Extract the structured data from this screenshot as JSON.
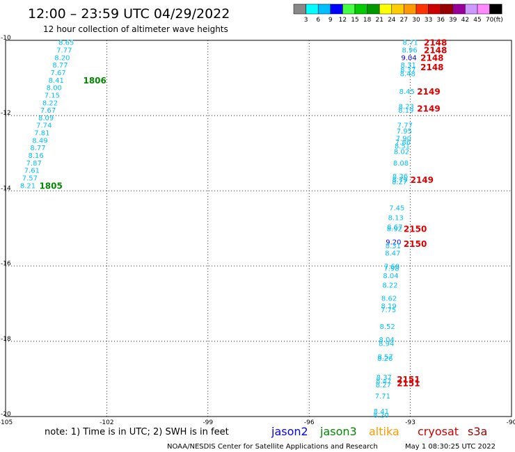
{
  "title": "12:00 – 23:59 UTC 04/29/2022",
  "subtitle": "12 hour collection of altimeter wave heights",
  "note": "note:  1) Time is in UTC; 2) SWH is in feet",
  "footer_left": "NOAA/NESDIS Center for Satellite Applications and Research",
  "footer_right": "May  1 08:30:25 UTC 2022",
  "colorbar": {
    "unit": "(ft)",
    "labels": [
      "3",
      "6",
      "9",
      "12",
      "15",
      "18",
      "21",
      "24",
      "27",
      "30",
      "33",
      "36",
      "39",
      "42",
      "45",
      "70"
    ],
    "colors": [
      "#888888",
      "#00ffff",
      "#00bfff",
      "#0000ff",
      "#44ff44",
      "#00cc00",
      "#009900",
      "#ffff00",
      "#ffcc00",
      "#ff9900",
      "#ff3300",
      "#cc0000",
      "#990000",
      "#990099",
      "#cc99ff",
      "#ff88ff",
      "#000000"
    ]
  },
  "satellites": [
    {
      "name": "jason2",
      "color": "#0000ff"
    },
    {
      "name": "jason3",
      "color": "#008800"
    },
    {
      "name": "altika",
      "color": "#ff9900"
    },
    {
      "name": "cryosat",
      "color": "#cc0000"
    },
    {
      "name": "s3a",
      "color": "#990000"
    }
  ],
  "chart_data": {
    "type": "scatter",
    "title": "12:00 – 23:59 UTC 04/29/2022",
    "subtitle": "12 hour collection of altimeter wave heights",
    "xlim": [
      -105,
      -90
    ],
    "ylim": [
      -20,
      -10
    ],
    "x_ticks": [
      "-105",
      "-102",
      "-99",
      "-96",
      "-93",
      "-90"
    ],
    "y_ticks": [
      "-10",
      "-12",
      "-14",
      "-16",
      "-18",
      "-20"
    ],
    "grid": true,
    "series": [
      {
        "name": "jason3",
        "track_color": "#00bfff",
        "points": [
          {
            "x": -103.2,
            "y": -10.05,
            "label": "8.65"
          },
          {
            "x": -103.26,
            "y": -10.25,
            "label": "7.77"
          },
          {
            "x": -103.32,
            "y": -10.45,
            "label": "8.20"
          },
          {
            "x": -103.38,
            "y": -10.65,
            "label": "8.77"
          },
          {
            "x": -103.44,
            "y": -10.85,
            "label": "7.67"
          },
          {
            "x": -103.5,
            "y": -11.05,
            "label": "8.41"
          },
          {
            "x": -103.56,
            "y": -11.25,
            "label": "8.00"
          },
          {
            "x": -103.62,
            "y": -11.45,
            "label": "7.15"
          },
          {
            "x": -103.68,
            "y": -11.65,
            "label": "8.22"
          },
          {
            "x": -103.74,
            "y": -11.85,
            "label": "7.67"
          },
          {
            "x": -103.8,
            "y": -12.05,
            "label": "8.09"
          },
          {
            "x": -103.86,
            "y": -12.25,
            "label": "7.74"
          },
          {
            "x": -103.92,
            "y": -12.45,
            "label": "7.81"
          },
          {
            "x": -103.98,
            "y": -12.65,
            "label": "8.49"
          },
          {
            "x": -104.04,
            "y": -12.85,
            "label": "8.77"
          },
          {
            "x": -104.1,
            "y": -13.05,
            "label": "8.16"
          },
          {
            "x": -104.16,
            "y": -13.25,
            "label": "7.87"
          },
          {
            "x": -104.22,
            "y": -13.45,
            "label": "7.61"
          },
          {
            "x": -104.28,
            "y": -13.65,
            "label": "7.57"
          },
          {
            "x": -104.34,
            "y": -13.85,
            "label": "8.21"
          }
        ],
        "pass_labels": [
          {
            "x": -102.7,
            "y": -11.05,
            "label": "1806",
            "color": "#008800"
          },
          {
            "x": -104.0,
            "y": -13.85,
            "label": "1805",
            "color": "#008800"
          }
        ]
      },
      {
        "name": "cryosat",
        "track_color": "#00bfff",
        "points": [
          {
            "x": -93.0,
            "y": -10.05,
            "label": "8.71"
          },
          {
            "x": -93.02,
            "y": -10.25,
            "label": "8.96"
          },
          {
            "x": -93.04,
            "y": -10.45,
            "label": "9.04",
            "color": "#0000ff"
          },
          {
            "x": -93.06,
            "y": -10.65,
            "label": "8.31"
          },
          {
            "x": -93.07,
            "y": -10.78,
            "label": "8.37"
          },
          {
            "x": -93.08,
            "y": -10.88,
            "label": "8.48"
          },
          {
            "x": -93.1,
            "y": -11.35,
            "label": "8.45"
          },
          {
            "x": -93.12,
            "y": -11.75,
            "label": "8.23"
          },
          {
            "x": -93.13,
            "y": -11.85,
            "label": "8.19"
          },
          {
            "x": -93.16,
            "y": -12.25,
            "label": "7.77"
          },
          {
            "x": -93.18,
            "y": -12.4,
            "label": "7.95"
          },
          {
            "x": -93.2,
            "y": -12.6,
            "label": "7.90"
          },
          {
            "x": -93.22,
            "y": -12.7,
            "label": "7.86"
          },
          {
            "x": -93.24,
            "y": -12.8,
            "label": "8.51"
          },
          {
            "x": -93.26,
            "y": -12.95,
            "label": "8.02"
          },
          {
            "x": -93.28,
            "y": -13.25,
            "label": "8.08"
          },
          {
            "x": -93.3,
            "y": -13.6,
            "label": "8.36"
          },
          {
            "x": -93.31,
            "y": -13.7,
            "label": "8.79"
          },
          {
            "x": -93.32,
            "y": -13.75,
            "label": "8.27"
          },
          {
            "x": -93.4,
            "y": -14.45,
            "label": "7.45"
          },
          {
            "x": -93.43,
            "y": -14.7,
            "label": "8.13"
          },
          {
            "x": -93.46,
            "y": -14.95,
            "label": "8.67"
          },
          {
            "x": -93.47,
            "y": -15.0,
            "label": "8.92"
          },
          {
            "x": -93.5,
            "y": -15.35,
            "label": "9.20",
            "color": "#0000ff"
          },
          {
            "x": -93.51,
            "y": -15.45,
            "label": "8.31"
          },
          {
            "x": -93.52,
            "y": -15.65,
            "label": "8.47"
          },
          {
            "x": -93.55,
            "y": -16.0,
            "label": "7.68"
          },
          {
            "x": -93.56,
            "y": -16.05,
            "label": "7.98"
          },
          {
            "x": -93.58,
            "y": -16.25,
            "label": "8.04"
          },
          {
            "x": -93.6,
            "y": -16.5,
            "label": "8.22"
          },
          {
            "x": -93.63,
            "y": -16.85,
            "label": "8.62"
          },
          {
            "x": -93.64,
            "y": -17.05,
            "label": "8.19"
          },
          {
            "x": -93.65,
            "y": -17.15,
            "label": "7.75"
          },
          {
            "x": -93.68,
            "y": -17.6,
            "label": "8.52"
          },
          {
            "x": -93.7,
            "y": -17.95,
            "label": "8.04"
          },
          {
            "x": -93.71,
            "y": -18.05,
            "label": "8.94"
          },
          {
            "x": -93.74,
            "y": -18.4,
            "label": "8.57"
          },
          {
            "x": -93.75,
            "y": -18.45,
            "label": "8.26"
          },
          {
            "x": -93.78,
            "y": -18.95,
            "label": "8.37"
          },
          {
            "x": -93.79,
            "y": -19.05,
            "label": "8.47"
          },
          {
            "x": -93.8,
            "y": -19.15,
            "label": "8.27"
          },
          {
            "x": -93.82,
            "y": -19.45,
            "label": "7.71"
          },
          {
            "x": -93.86,
            "y": -19.85,
            "label": "8.41"
          },
          {
            "x": -93.87,
            "y": -19.95,
            "label": "8.20"
          }
        ],
        "pass_labels": [
          {
            "x": -92.6,
            "y": -10.05,
            "label": "2148",
            "color": "#dd0000"
          },
          {
            "x": -92.6,
            "y": -10.25,
            "label": "2148",
            "color": "#dd0000"
          },
          {
            "x": -92.7,
            "y": -10.45,
            "label": "2148",
            "color": "#dd0000"
          },
          {
            "x": -92.7,
            "y": -10.7,
            "label": "2148",
            "color": "#dd0000"
          },
          {
            "x": -92.8,
            "y": -11.35,
            "label": "2149",
            "color": "#dd0000"
          },
          {
            "x": -92.8,
            "y": -11.8,
            "label": "2149",
            "color": "#dd0000"
          },
          {
            "x": -93.0,
            "y": -13.7,
            "label": "2149",
            "color": "#dd0000"
          },
          {
            "x": -93.2,
            "y": -15.0,
            "label": "2150",
            "color": "#dd0000"
          },
          {
            "x": -93.2,
            "y": -15.4,
            "label": "2150",
            "color": "#dd0000"
          },
          {
            "x": -93.4,
            "y": -19.0,
            "label": "2151",
            "color": "#dd0000"
          },
          {
            "x": -93.4,
            "y": -19.1,
            "label": "2151",
            "color": "#dd0000"
          }
        ]
      }
    ]
  }
}
